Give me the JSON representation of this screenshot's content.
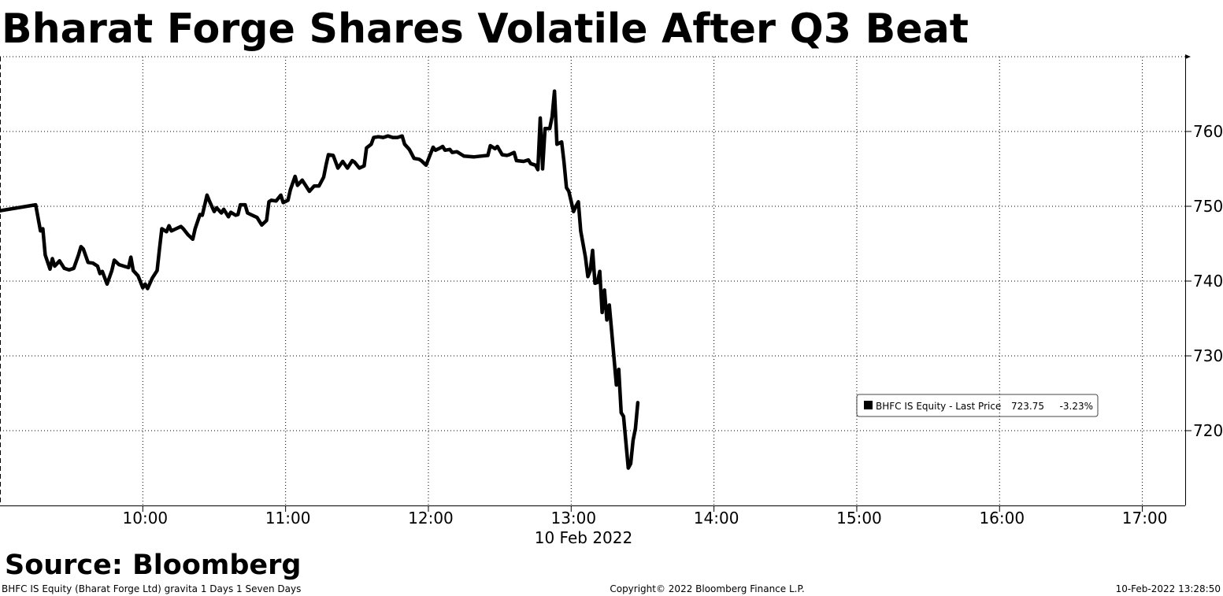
{
  "chart_data": {
    "type": "line",
    "title": "Bharat Forge Shares Volatile After Q3 Beat",
    "x_axis_label": "10 Feb 2022",
    "source": "Source: Bloomberg",
    "footer_left": "BHFC IS Equity (Bharat Forge Ltd) gravita 1 Days 1 Seven Days",
    "footer_center": "Copyright© 2022 Bloomberg Finance L.P.",
    "footer_right": "10-Feb-2022 13:28:50",
    "legend": {
      "name": "BHFC IS Equity - Last Price",
      "last_price": 723.75,
      "change": {
        "value": -3.23,
        "label": "-3.23%"
      }
    },
    "grid": true,
    "xlim": [
      "09:00",
      "17:18"
    ],
    "xticks": [
      "10:00",
      "11:00",
      "12:00",
      "13:00",
      "14:00",
      "15:00",
      "16:00",
      "17:00"
    ],
    "ylim": [
      710,
      770
    ],
    "yticks": [
      720,
      730,
      740,
      750,
      760
    ],
    "x": [
      "09:00",
      "09:15",
      "09:17",
      "09:18",
      "09:19",
      "09:21",
      "09:22",
      "09:23",
      "09:25",
      "09:27",
      "09:29",
      "09:31",
      "09:33",
      "09:34",
      "09:35",
      "09:37",
      "09:39",
      "09:41",
      "09:42",
      "09:43",
      "09:45",
      "09:47",
      "09:48",
      "09:50",
      "09:52",
      "09:54",
      "09:55",
      "09:56",
      "09:58",
      "10:00",
      "10:01",
      "10:02",
      "10:04",
      "10:06",
      "10:07",
      "10:08",
      "10:10",
      "10:11",
      "10:12",
      "10:14",
      "10:16",
      "10:17",
      "10:19",
      "10:21",
      "10:22",
      "10:24",
      "10:25",
      "10:27",
      "10:28",
      "10:30",
      "10:31",
      "10:33",
      "10:34",
      "10:36",
      "10:37",
      "10:39",
      "10:40",
      "10:41",
      "10:43",
      "10:44",
      "10:46",
      "10:48",
      "10:50",
      "10:52",
      "10:53",
      "10:54",
      "10:56",
      "10:58",
      "10:59",
      "11:01",
      "11:02",
      "11:04",
      "11:05",
      "11:07",
      "11:08",
      "11:10",
      "11:12",
      "11:14",
      "11:16",
      "11:17",
      "11:18",
      "11:20",
      "11:22",
      "11:24",
      "11:26",
      "11:28",
      "11:29",
      "11:31",
      "11:33",
      "11:34",
      "11:36",
      "11:37",
      "11:39",
      "11:41",
      "11:43",
      "11:45",
      "11:47",
      "11:49",
      "11:50",
      "11:52",
      "11:54",
      "11:56",
      "11:57",
      "11:59",
      "12:00",
      "12:02",
      "12:03",
      "12:05",
      "12:06",
      "12:07",
      "12:09",
      "12:10",
      "12:12",
      "12:14",
      "12:15",
      "12:19",
      "12:22",
      "12:25",
      "12:26",
      "12:28",
      "12:29",
      "12:31",
      "12:33",
      "12:34",
      "12:36",
      "12:37",
      "12:40",
      "12:42",
      "12:43",
      "12:45",
      "12:46",
      "12:47",
      "12:48",
      "12:48",
      "12:49",
      "12:51",
      "12:52",
      "12:53",
      "12:54",
      "12:56",
      "12:57",
      "12:58",
      "12:59",
      "13:01",
      "13:02",
      "13:03",
      "13:04",
      "13:06",
      "13:07",
      "13:08",
      "13:09",
      "13:10",
      "13:11",
      "13:12",
      "13:13",
      "13:14",
      "13:15",
      "13:16",
      "13:17",
      "13:19",
      "13:20",
      "13:21",
      "13:22",
      "13:24",
      "13:25",
      "13:26",
      "13:27",
      "13:28"
    ],
    "series": [
      {
        "name": "BHFC IS Equity - Last Price",
        "color": "#000000",
        "values": [
          749.4,
          750.2,
          746.7,
          747.0,
          743.5,
          741.6,
          743.0,
          742.0,
          742.7,
          741.7,
          741.5,
          741.7,
          743.5,
          744.6,
          744.3,
          742.5,
          742.4,
          742.0,
          741.0,
          741.3,
          739.6,
          741.4,
          742.8,
          742.2,
          742.0,
          741.8,
          743.2,
          741.4,
          740.7,
          739.1,
          739.6,
          739.0,
          740.4,
          741.4,
          744.3,
          747.0,
          746.6,
          747.4,
          746.7,
          747.0,
          747.3,
          747.0,
          746.2,
          745.6,
          747.0,
          748.9,
          748.8,
          751.5,
          750.7,
          749.3,
          749.8,
          749.1,
          749.6,
          748.6,
          749.2,
          748.8,
          748.9,
          750.2,
          750.2,
          749.1,
          748.8,
          748.5,
          747.5,
          748.1,
          750.6,
          750.8,
          750.7,
          751.5,
          750.5,
          750.8,
          752.2,
          754.0,
          752.8,
          753.5,
          753.0,
          752.0,
          752.7,
          752.7,
          753.9,
          755.5,
          756.9,
          756.8,
          755.1,
          756.0,
          755.1,
          756.1,
          755.9,
          755.1,
          755.4,
          757.8,
          758.3,
          759.2,
          759.3,
          759.2,
          759.4,
          759.2,
          759.2,
          759.4,
          758.3,
          757.6,
          756.4,
          756.3,
          756.1,
          755.5,
          756.3,
          757.9,
          757.5,
          757.8,
          758.0,
          757.5,
          757.6,
          757.2,
          757.3,
          756.9,
          756.7,
          756.6,
          756.7,
          756.8,
          758.1,
          757.7,
          758.0,
          756.9,
          756.8,
          756.9,
          757.2,
          756.1,
          756.0,
          756.2,
          755.7,
          755.5,
          754.9,
          761.8,
          755.3,
          755.0,
          760.4,
          760.4,
          762.0,
          765.4,
          758.3,
          758.6,
          755.9,
          752.5,
          752.0,
          749.3,
          750.0,
          750.6,
          746.7,
          743.2,
          740.6,
          741.4,
          744.1,
          739.7,
          739.8,
          741.3,
          735.8,
          738.8,
          734.8,
          736.8,
          733.3,
          726.1,
          728.2,
          722.4,
          721.9,
          715.0,
          715.6,
          718.7,
          720.3,
          723.75
        ]
      }
    ]
  }
}
